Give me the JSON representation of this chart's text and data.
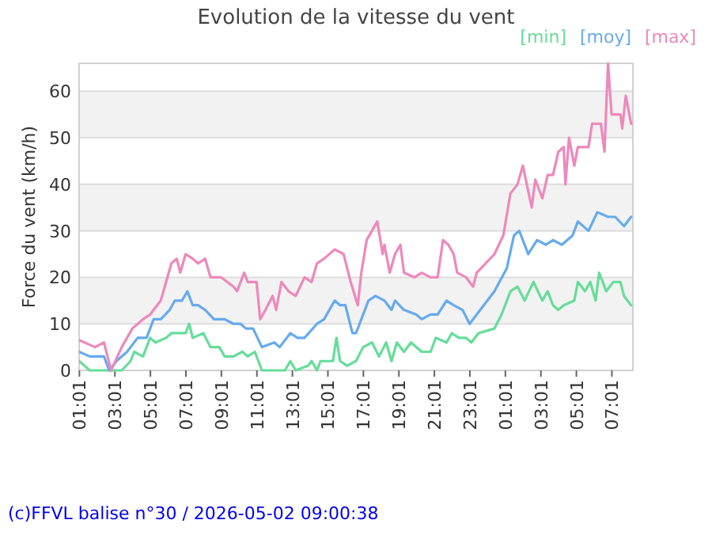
{
  "chart_data": {
    "type": "line",
    "title": "Evolution de la vitesse du vent",
    "ylabel": "Force du vent (km/h)",
    "legend": "top right",
    "grid": "y",
    "xlim": [
      "2026-05-01T01:00",
      "2026-05-02T08:12"
    ],
    "ylim": [
      0,
      66
    ],
    "yticks": [
      0,
      10,
      20,
      30,
      40,
      50,
      60
    ],
    "xticks": [
      {
        "value": "2026-05-01T01:01",
        "label": "01:01"
      },
      {
        "value": "2026-05-01T03:01",
        "label": "03:01"
      },
      {
        "value": "2026-05-01T05:01",
        "label": "05:01"
      },
      {
        "value": "2026-05-01T07:01",
        "label": "07:01"
      },
      {
        "value": "2026-05-01T09:01",
        "label": "09:01"
      },
      {
        "value": "2026-05-01T11:01",
        "label": "11:01"
      },
      {
        "value": "2026-05-01T13:01",
        "label": "13:01"
      },
      {
        "value": "2026-05-01T15:01",
        "label": "15:01"
      },
      {
        "value": "2026-05-01T17:01",
        "label": "17:01"
      },
      {
        "value": "2026-05-01T19:01",
        "label": "19:01"
      },
      {
        "value": "2026-05-01T21:01",
        "label": "21:01"
      },
      {
        "value": "2026-05-01T23:01",
        "label": "23:01"
      },
      {
        "value": "2026-05-02T01:01",
        "label": "01:01"
      },
      {
        "value": "2026-05-02T03:01",
        "label": "03:01"
      },
      {
        "value": "2026-05-02T05:01",
        "label": "05:01"
      },
      {
        "value": "2026-05-02T07:01",
        "label": "07:01"
      }
    ],
    "series": [
      {
        "name": "[min]",
        "color": "#66dd99",
        "x": [
          "2026-05-01T01:00",
          "2026-05-01T01:36",
          "2026-05-01T03:24",
          "2026-05-01T03:54",
          "2026-05-01T04:06",
          "2026-05-01T04:36",
          "2026-05-01T05:00",
          "2026-05-01T05:18",
          "2026-05-01T05:54",
          "2026-05-01T06:12",
          "2026-05-01T07:00",
          "2026-05-01T07:12",
          "2026-05-01T07:24",
          "2026-05-01T08:00",
          "2026-05-01T08:24",
          "2026-05-01T08:54",
          "2026-05-01T09:12",
          "2026-05-01T09:42",
          "2026-05-01T10:12",
          "2026-05-01T10:30",
          "2026-05-01T10:54",
          "2026-05-01T11:18",
          "2026-05-01T12:36",
          "2026-05-01T12:54",
          "2026-05-01T13:12",
          "2026-05-01T13:54",
          "2026-05-01T14:06",
          "2026-05-01T14:24",
          "2026-05-01T14:36",
          "2026-05-01T15:18",
          "2026-05-01T15:30",
          "2026-05-01T15:42",
          "2026-05-01T16:06",
          "2026-05-01T16:36",
          "2026-05-01T17:00",
          "2026-05-01T17:30",
          "2026-05-01T17:54",
          "2026-05-01T18:18",
          "2026-05-01T18:36",
          "2026-05-01T18:54",
          "2026-05-01T19:18",
          "2026-05-01T19:42",
          "2026-05-01T20:18",
          "2026-05-01T20:48",
          "2026-05-01T21:06",
          "2026-05-01T21:42",
          "2026-05-01T22:00",
          "2026-05-01T22:24",
          "2026-05-01T22:48",
          "2026-05-01T23:06",
          "2026-05-01T23:30",
          "2026-05-02T00:24",
          "2026-05-02T00:48",
          "2026-05-02T01:18",
          "2026-05-02T01:42",
          "2026-05-02T02:06",
          "2026-05-02T02:36",
          "2026-05-02T03:06",
          "2026-05-02T03:24",
          "2026-05-02T03:42",
          "2026-05-02T04:00",
          "2026-05-02T04:18",
          "2026-05-02T04:54",
          "2026-05-02T05:06",
          "2026-05-02T05:30",
          "2026-05-02T05:48",
          "2026-05-02T06:06",
          "2026-05-02T06:18",
          "2026-05-02T06:42",
          "2026-05-02T07:06",
          "2026-05-02T07:30",
          "2026-05-02T07:42",
          "2026-05-02T08:06"
        ],
        "values": [
          2,
          0,
          0,
          2,
          4,
          3,
          7,
          6,
          7,
          8,
          8,
          10,
          7,
          8,
          5,
          5,
          3,
          3,
          4,
          3,
          4,
          0,
          0,
          2,
          0,
          1,
          2,
          0,
          2,
          2,
          7,
          2,
          1,
          2,
          5,
          6,
          3,
          6,
          2,
          6,
          4,
          6,
          4,
          4,
          7,
          6,
          8,
          7,
          7,
          6,
          8,
          9,
          12,
          17,
          18,
          15,
          19,
          15,
          17,
          14,
          13,
          14,
          15,
          19,
          17,
          19,
          15,
          21,
          17,
          19,
          19,
          16,
          14
        ]
      },
      {
        "name": "[moy]",
        "color": "#66aaee",
        "x": [
          "2026-05-01T01:00",
          "2026-05-01T01:36",
          "2026-05-01T02:24",
          "2026-05-01T02:42",
          "2026-05-01T03:06",
          "2026-05-01T03:42",
          "2026-05-01T04:18",
          "2026-05-01T04:48",
          "2026-05-01T05:12",
          "2026-05-01T05:36",
          "2026-05-01T06:06",
          "2026-05-01T06:24",
          "2026-05-01T06:48",
          "2026-05-01T07:06",
          "2026-05-01T07:24",
          "2026-05-01T07:42",
          "2026-05-01T08:06",
          "2026-05-01T08:36",
          "2026-05-01T09:12",
          "2026-05-01T09:42",
          "2026-05-01T10:06",
          "2026-05-01T10:24",
          "2026-05-01T10:48",
          "2026-05-01T11:18",
          "2026-05-01T12:00",
          "2026-05-01T12:18",
          "2026-05-01T12:54",
          "2026-05-01T13:18",
          "2026-05-01T13:42",
          "2026-05-01T14:24",
          "2026-05-01T14:48",
          "2026-05-01T15:24",
          "2026-05-01T15:42",
          "2026-05-01T16:00",
          "2026-05-01T16:24",
          "2026-05-01T16:36",
          "2026-05-01T17:00",
          "2026-05-01T17:18",
          "2026-05-01T17:42",
          "2026-05-01T18:12",
          "2026-05-01T18:36",
          "2026-05-01T18:48",
          "2026-05-01T19:18",
          "2026-05-01T20:00",
          "2026-05-01T20:18",
          "2026-05-01T20:48",
          "2026-05-01T21:12",
          "2026-05-01T21:42",
          "2026-05-01T22:06",
          "2026-05-01T22:36",
          "2026-05-01T23:00",
          "2026-05-02T00:24",
          "2026-05-02T01:06",
          "2026-05-02T01:30",
          "2026-05-02T01:48",
          "2026-05-02T02:18",
          "2026-05-02T02:48",
          "2026-05-02T03:18",
          "2026-05-02T03:42",
          "2026-05-02T04:12",
          "2026-05-02T04:48",
          "2026-05-02T05:06",
          "2026-05-02T05:42",
          "2026-05-02T06:12",
          "2026-05-02T06:48",
          "2026-05-02T07:12",
          "2026-05-02T07:42",
          "2026-05-02T08:06"
        ],
        "values": [
          4,
          3,
          3,
          0,
          2,
          4,
          7,
          7,
          11,
          11,
          13,
          15,
          15,
          17,
          14,
          14,
          13,
          11,
          11,
          10,
          10,
          9,
          9,
          5,
          6,
          5,
          8,
          7,
          7,
          10,
          11,
          15,
          14,
          14,
          8,
          8,
          12,
          15,
          16,
          15,
          13,
          15,
          13,
          12,
          11,
          12,
          12,
          15,
          14,
          13,
          10,
          17,
          22,
          29,
          30,
          25,
          28,
          27,
          28,
          27,
          29,
          32,
          30,
          34,
          33,
          33,
          31,
          33
        ]
      },
      {
        "name": "[max]",
        "color": "#ee88bb",
        "x": [
          "2026-05-01T01:00",
          "2026-05-01T01:54",
          "2026-05-01T02:24",
          "2026-05-01T02:48",
          "2026-05-01T03:24",
          "2026-05-01T04:00",
          "2026-05-01T04:36",
          "2026-05-01T05:00",
          "2026-05-01T05:36",
          "2026-05-01T05:54",
          "2026-05-01T06:12",
          "2026-05-01T06:30",
          "2026-05-01T06:42",
          "2026-05-01T07:00",
          "2026-05-01T07:24",
          "2026-05-01T07:42",
          "2026-05-01T08:06",
          "2026-05-01T08:24",
          "2026-05-01T09:00",
          "2026-05-01T09:42",
          "2026-05-01T09:54",
          "2026-05-01T10:18",
          "2026-05-01T10:30",
          "2026-05-01T11:00",
          "2026-05-01T11:12",
          "2026-05-01T11:30",
          "2026-05-01T11:54",
          "2026-05-01T12:06",
          "2026-05-01T12:24",
          "2026-05-01T12:48",
          "2026-05-01T13:12",
          "2026-05-01T13:42",
          "2026-05-01T14:06",
          "2026-05-01T14:24",
          "2026-05-01T14:48",
          "2026-05-01T15:24",
          "2026-05-01T15:54",
          "2026-05-01T16:18",
          "2026-05-01T16:42",
          "2026-05-01T16:54",
          "2026-05-01T17:12",
          "2026-05-01T17:30",
          "2026-05-01T17:48",
          "2026-05-01T18:06",
          "2026-05-01T18:12",
          "2026-05-01T18:30",
          "2026-05-01T18:48",
          "2026-05-01T19:06",
          "2026-05-01T19:18",
          "2026-05-01T19:54",
          "2026-05-01T20:18",
          "2026-05-01T20:48",
          "2026-05-01T21:12",
          "2026-05-01T21:30",
          "2026-05-01T21:48",
          "2026-05-01T22:06",
          "2026-05-01T22:18",
          "2026-05-01T22:48",
          "2026-05-01T23:12",
          "2026-05-01T23:24",
          "2026-05-02T00:24",
          "2026-05-02T00:54",
          "2026-05-02T01:18",
          "2026-05-02T01:42",
          "2026-05-02T02:00",
          "2026-05-02T02:30",
          "2026-05-02T02:42",
          "2026-05-02T03:06",
          "2026-05-02T03:24",
          "2026-05-02T03:42",
          "2026-05-02T04:00",
          "2026-05-02T04:18",
          "2026-05-02T04:24",
          "2026-05-02T04:36",
          "2026-05-02T04:54",
          "2026-05-02T05:06",
          "2026-05-02T05:42",
          "2026-05-02T05:54",
          "2026-05-02T06:24",
          "2026-05-02T06:36",
          "2026-05-02T06:48",
          "2026-05-02T07:00",
          "2026-05-02T07:30",
          "2026-05-02T07:36",
          "2026-05-02T07:48",
          "2026-05-02T08:06"
        ],
        "values": [
          6.5,
          5,
          6,
          0,
          5,
          9,
          11,
          12,
          15,
          19,
          23,
          24,
          21,
          25,
          24,
          23,
          24,
          20,
          20,
          18,
          17,
          21,
          19,
          19,
          11,
          13,
          16,
          13,
          19,
          17,
          16,
          20,
          19,
          23,
          24,
          26,
          25,
          19,
          14,
          21,
          28,
          30,
          32,
          25,
          27,
          21,
          25,
          27,
          21,
          20,
          21,
          20,
          20,
          28,
          27,
          25,
          21,
          20,
          18,
          21,
          25,
          29,
          38,
          40,
          44,
          35,
          41,
          37,
          42,
          42,
          47,
          48,
          40,
          50,
          44,
          48,
          48,
          53,
          53,
          47,
          66,
          55,
          55,
          52,
          59,
          53
        ]
      }
    ],
    "annotations": [
      "(c)FFVL balise n°30 / 2026-05-02 09:00:38"
    ]
  }
}
